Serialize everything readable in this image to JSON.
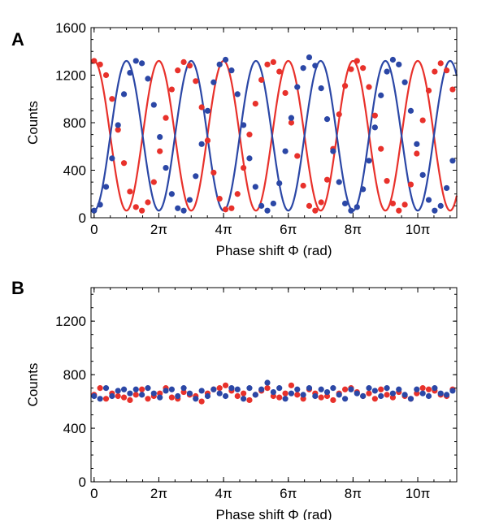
{
  "chart_data": [
    {
      "panel": "A",
      "type": "scatter",
      "xlabel": "Phase shift Φ (rad)",
      "ylabel": "Counts",
      "xlim": [
        -0.3,
        35.2
      ],
      "ylim": [
        0,
        1600
      ],
      "yticks": [
        0,
        400,
        800,
        1200,
        1600
      ],
      "xticks": [
        {
          "value": 0,
          "label": "0"
        },
        {
          "value": 6.283,
          "label": "2π"
        },
        {
          "value": 12.566,
          "label": "4π"
        },
        {
          "value": 18.85,
          "label": "6π"
        },
        {
          "value": 25.133,
          "label": "8π"
        },
        {
          "value": 31.416,
          "label": "10π"
        }
      ],
      "grid": false,
      "series": [
        {
          "color": "#e8312b",
          "points": [
            [
              0.0,
              1320
            ],
            [
              0.58,
              1290
            ],
            [
              1.16,
              1200
            ],
            [
              1.74,
              1000
            ],
            [
              2.32,
              740
            ],
            [
              2.9,
              460
            ],
            [
              3.48,
              220
            ],
            [
              4.06,
              90
            ],
            [
              4.64,
              60
            ],
            [
              5.22,
              130
            ],
            [
              5.8,
              300
            ],
            [
              6.38,
              560
            ],
            [
              6.96,
              840
            ],
            [
              7.54,
              1080
            ],
            [
              8.12,
              1240
            ],
            [
              8.7,
              1310
            ],
            [
              9.28,
              1280
            ],
            [
              9.86,
              1150
            ],
            [
              10.44,
              930
            ],
            [
              11.02,
              650
            ],
            [
              11.6,
              380
            ],
            [
              12.18,
              160
            ],
            [
              12.76,
              70
            ],
            [
              13.34,
              80
            ],
            [
              13.92,
              200
            ],
            [
              14.5,
              420
            ],
            [
              15.08,
              700
            ],
            [
              15.66,
              960
            ],
            [
              16.24,
              1160
            ],
            [
              16.82,
              1290
            ],
            [
              17.4,
              1310
            ],
            [
              17.98,
              1230
            ],
            [
              18.56,
              1050
            ],
            [
              19.14,
              800
            ],
            [
              19.72,
              520
            ],
            [
              20.3,
              270
            ],
            [
              20.88,
              100
            ],
            [
              21.46,
              60
            ],
            [
              22.04,
              130
            ],
            [
              22.62,
              320
            ],
            [
              23.2,
              580
            ],
            [
              23.78,
              870
            ],
            [
              24.36,
              1110
            ],
            [
              24.94,
              1250
            ],
            [
              25.52,
              1320
            ],
            [
              26.1,
              1260
            ],
            [
              26.68,
              1100
            ],
            [
              27.26,
              860
            ],
            [
              27.84,
              580
            ],
            [
              28.42,
              310
            ],
            [
              29.0,
              120
            ],
            [
              29.58,
              60
            ],
            [
              30.16,
              110
            ],
            [
              30.74,
              280
            ],
            [
              31.32,
              540
            ],
            [
              31.9,
              820
            ],
            [
              32.48,
              1070
            ],
            [
              33.06,
              1230
            ],
            [
              33.64,
              1300
            ],
            [
              34.22,
              1240
            ],
            [
              34.8,
              1080
            ]
          ]
        },
        {
          "color": "#2b47a6",
          "points": [
            [
              0.0,
              60
            ],
            [
              0.58,
              110
            ],
            [
              1.16,
              260
            ],
            [
              1.74,
              500
            ],
            [
              2.32,
              780
            ],
            [
              2.9,
              1040
            ],
            [
              3.48,
              1220
            ],
            [
              4.06,
              1320
            ],
            [
              4.64,
              1300
            ],
            [
              5.22,
              1170
            ],
            [
              5.8,
              950
            ],
            [
              6.38,
              680
            ],
            [
              6.96,
              420
            ],
            [
              7.54,
              200
            ],
            [
              8.12,
              80
            ],
            [
              8.7,
              60
            ],
            [
              9.28,
              150
            ],
            [
              9.86,
              350
            ],
            [
              10.44,
              620
            ],
            [
              11.02,
              900
            ],
            [
              11.6,
              1140
            ],
            [
              12.18,
              1290
            ],
            [
              12.76,
              1330
            ],
            [
              13.34,
              1240
            ],
            [
              13.92,
              1040
            ],
            [
              14.5,
              780
            ],
            [
              15.08,
              500
            ],
            [
              15.66,
              260
            ],
            [
              16.24,
              100
            ],
            [
              16.82,
              60
            ],
            [
              17.4,
              120
            ],
            [
              17.98,
              290
            ],
            [
              18.56,
              560
            ],
            [
              19.14,
              840
            ],
            [
              19.72,
              1100
            ],
            [
              20.3,
              1260
            ],
            [
              20.88,
              1350
            ],
            [
              21.46,
              1280
            ],
            [
              22.04,
              1090
            ],
            [
              22.62,
              830
            ],
            [
              23.2,
              560
            ],
            [
              23.78,
              300
            ],
            [
              24.36,
              120
            ],
            [
              24.94,
              60
            ],
            [
              25.52,
              90
            ],
            [
              26.1,
              240
            ],
            [
              26.68,
              480
            ],
            [
              27.26,
              760
            ],
            [
              27.84,
              1030
            ],
            [
              28.42,
              1230
            ],
            [
              29.0,
              1330
            ],
            [
              29.58,
              1290
            ],
            [
              30.16,
              1140
            ],
            [
              30.74,
              900
            ],
            [
              31.32,
              620
            ],
            [
              31.9,
              360
            ],
            [
              32.48,
              150
            ],
            [
              33.06,
              60
            ],
            [
              33.64,
              100
            ],
            [
              34.22,
              250
            ],
            [
              34.8,
              480
            ]
          ]
        }
      ],
      "curves": [
        {
          "color": "#e8312b",
          "model": "cosine",
          "offset": 690,
          "amplitude": 630,
          "period": 6.283,
          "phase": 0.0
        },
        {
          "color": "#2b47a6",
          "model": "cosine",
          "offset": 690,
          "amplitude": 630,
          "period": 6.283,
          "phase": 3.1416
        }
      ]
    },
    {
      "panel": "B",
      "type": "scatter",
      "xlabel": "Phase shift Φ (rad)",
      "ylabel": "Counts",
      "xlim": [
        -0.3,
        35.2
      ],
      "ylim": [
        0,
        1450
      ],
      "yticks": [
        0,
        400,
        800,
        1200
      ],
      "xticks": [
        {
          "value": 0,
          "label": "0"
        },
        {
          "value": 6.283,
          "label": "2π"
        },
        {
          "value": 12.566,
          "label": "4π"
        },
        {
          "value": 18.85,
          "label": "6π"
        },
        {
          "value": 25.133,
          "label": "8π"
        },
        {
          "value": 31.416,
          "label": "10π"
        }
      ],
      "grid": false,
      "series": [
        {
          "color": "#e8312b",
          "points": [
            [
              0.0,
              650
            ],
            [
              0.58,
              700
            ],
            [
              1.16,
              620
            ],
            [
              1.74,
              660
            ],
            [
              2.32,
              640
            ],
            [
              2.9,
              630
            ],
            [
              3.48,
              610
            ],
            [
              4.06,
              650
            ],
            [
              4.64,
              690
            ],
            [
              5.22,
              620
            ],
            [
              5.8,
              640
            ],
            [
              6.38,
              660
            ],
            [
              6.96,
              700
            ],
            [
              7.54,
              630
            ],
            [
              8.12,
              620
            ],
            [
              8.7,
              670
            ],
            [
              9.28,
              650
            ],
            [
              9.86,
              640
            ],
            [
              10.44,
              600
            ],
            [
              11.02,
              660
            ],
            [
              11.6,
              690
            ],
            [
              12.18,
              700
            ],
            [
              12.76,
              720
            ],
            [
              13.34,
              680
            ],
            [
              13.92,
              640
            ],
            [
              14.5,
              660
            ],
            [
              15.08,
              610
            ],
            [
              15.66,
              650
            ],
            [
              16.24,
              680
            ],
            [
              16.82,
              700
            ],
            [
              17.4,
              640
            ],
            [
              17.98,
              630
            ],
            [
              18.56,
              660
            ],
            [
              19.14,
              720
            ],
            [
              19.72,
              650
            ],
            [
              20.3,
              620
            ],
            [
              20.88,
              690
            ],
            [
              21.46,
              660
            ],
            [
              22.04,
              630
            ],
            [
              22.62,
              640
            ],
            [
              23.2,
              610
            ],
            [
              23.78,
              660
            ],
            [
              24.36,
              690
            ],
            [
              24.94,
              700
            ],
            [
              25.52,
              670
            ],
            [
              26.1,
              640
            ],
            [
              26.68,
              660
            ],
            [
              27.26,
              620
            ],
            [
              27.84,
              690
            ],
            [
              28.42,
              650
            ],
            [
              29.0,
              630
            ],
            [
              29.58,
              670
            ],
            [
              30.16,
              640
            ],
            [
              30.74,
              620
            ],
            [
              31.32,
              660
            ],
            [
              31.9,
              700
            ],
            [
              32.48,
              690
            ],
            [
              33.06,
              680
            ],
            [
              33.64,
              650
            ],
            [
              34.22,
              640
            ],
            [
              34.8,
              690
            ]
          ]
        },
        {
          "color": "#2b47a6",
          "points": [
            [
              0.0,
              640
            ],
            [
              0.58,
              620
            ],
            [
              1.16,
              700
            ],
            [
              1.74,
              640
            ],
            [
              2.32,
              680
            ],
            [
              2.9,
              690
            ],
            [
              3.48,
              660
            ],
            [
              4.06,
              690
            ],
            [
              4.64,
              650
            ],
            [
              5.22,
              700
            ],
            [
              5.8,
              660
            ],
            [
              6.38,
              630
            ],
            [
              6.96,
              680
            ],
            [
              7.54,
              690
            ],
            [
              8.12,
              640
            ],
            [
              8.7,
              700
            ],
            [
              9.28,
              660
            ],
            [
              9.86,
              620
            ],
            [
              10.44,
              680
            ],
            [
              11.02,
              640
            ],
            [
              11.6,
              690
            ],
            [
              12.18,
              660
            ],
            [
              12.76,
              640
            ],
            [
              13.34,
              700
            ],
            [
              13.92,
              690
            ],
            [
              14.5,
              620
            ],
            [
              15.08,
              700
            ],
            [
              15.66,
              650
            ],
            [
              16.24,
              690
            ],
            [
              16.82,
              740
            ],
            [
              17.4,
              670
            ],
            [
              17.98,
              700
            ],
            [
              18.56,
              620
            ],
            [
              19.14,
              660
            ],
            [
              19.72,
              690
            ],
            [
              20.3,
              650
            ],
            [
              20.88,
              700
            ],
            [
              21.46,
              640
            ],
            [
              22.04,
              690
            ],
            [
              22.62,
              670
            ],
            [
              23.2,
              700
            ],
            [
              23.78,
              650
            ],
            [
              24.36,
              620
            ],
            [
              24.94,
              690
            ],
            [
              25.52,
              660
            ],
            [
              26.1,
              640
            ],
            [
              26.68,
              700
            ],
            [
              27.26,
              680
            ],
            [
              27.84,
              640
            ],
            [
              28.42,
              700
            ],
            [
              29.0,
              660
            ],
            [
              29.58,
              690
            ],
            [
              30.16,
              650
            ],
            [
              30.74,
              620
            ],
            [
              31.32,
              690
            ],
            [
              31.9,
              660
            ],
            [
              32.48,
              640
            ],
            [
              33.06,
              700
            ],
            [
              33.64,
              660
            ],
            [
              34.22,
              650
            ],
            [
              34.8,
              680
            ]
          ]
        }
      ]
    }
  ]
}
